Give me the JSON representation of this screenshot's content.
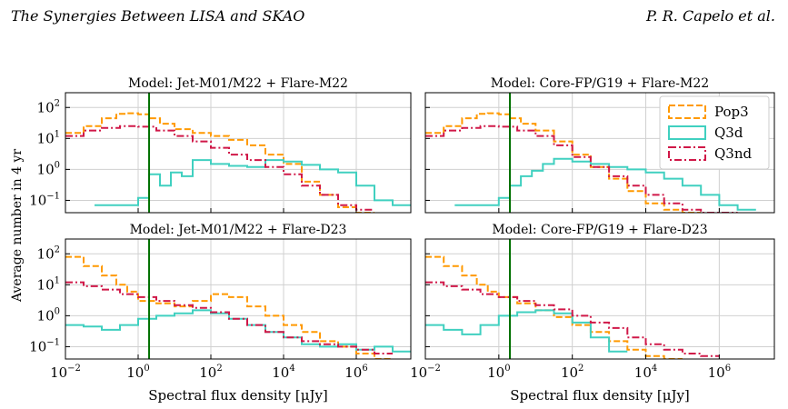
{
  "page": {
    "header_left": "The Synergies Between LISA and SKAO",
    "header_right": "P. R. Capelo et al."
  },
  "figure": {
    "ylabel": "Average number in 4 yr",
    "xlabel": "Spectral flux density [μJy]",
    "threshold_x": 2,
    "colors": {
      "Pop3": "#ff9900",
      "Q3d": "#40d0c0",
      "Q3nd": "#d01848",
      "threshold": "#007000"
    },
    "legend": [
      "Pop3",
      "Q3d",
      "Q3nd"
    ]
  },
  "chart_data": [
    {
      "type": "histogram",
      "title": "Model: Jet-M01/M22 + Flare-M22",
      "x_log_range": [
        -2,
        7.5
      ],
      "ylim": [
        0.04,
        300
      ],
      "x_ticks": [
        "10^-2",
        "10^0",
        "10^2",
        "10^4",
        "10^6"
      ],
      "y_ticks": [
        "10^-1",
        "10^0",
        "10^1",
        "10^2"
      ],
      "grid": true,
      "legend_position": "none",
      "series": [
        {
          "name": "Pop3",
          "x": [
            -2.0,
            -1.5,
            -1.0,
            -0.6,
            -0.3,
            0.0,
            0.3,
            0.6,
            1.0,
            1.5,
            2.0,
            2.5,
            3.0,
            3.5,
            4.0,
            4.5,
            5.0,
            5.5,
            6.0
          ],
          "y": [
            15,
            25,
            45,
            62,
            65,
            60,
            45,
            30,
            20,
            15,
            12,
            9,
            6,
            3,
            1.5,
            0.4,
            0.15,
            0.06,
            0.04
          ]
        },
        {
          "name": "Q3d",
          "x": [
            -1.2,
            -0.6,
            0.0,
            0.3,
            0.6,
            0.9,
            1.2,
            1.5,
            2.0,
            2.5,
            3.0,
            3.5,
            4.0,
            4.5,
            5.0,
            5.5,
            6.0,
            6.5,
            7.0
          ],
          "y": [
            0.07,
            0.07,
            0.12,
            0.7,
            0.3,
            0.8,
            0.6,
            2,
            1.5,
            1.3,
            1.2,
            2,
            1.8,
            1.4,
            1,
            0.8,
            0.3,
            0.1,
            0.07
          ]
        },
        {
          "name": "Q3nd",
          "x": [
            -2.0,
            -1.5,
            -1.0,
            -0.5,
            0.0,
            0.5,
            1.0,
            1.5,
            2.0,
            2.5,
            3.0,
            3.5,
            4.0,
            4.5,
            5.0,
            5.5,
            6.0
          ],
          "y": [
            12,
            18,
            22,
            25,
            24,
            18,
            12,
            8,
            5,
            3,
            2,
            1.2,
            0.7,
            0.3,
            0.15,
            0.07,
            0.05
          ]
        }
      ]
    },
    {
      "type": "histogram",
      "title": "Model: Core-FP/G19 + Flare-M22",
      "x_log_range": [
        -2,
        7.5
      ],
      "ylim": [
        0.04,
        300
      ],
      "x_ticks": [
        "10^-2",
        "10^0",
        "10^2",
        "10^4",
        "10^6"
      ],
      "y_ticks": [
        "10^-1",
        "10^0",
        "10^1",
        "10^2"
      ],
      "grid": true,
      "legend_position": "upper right",
      "series": [
        {
          "name": "Pop3",
          "x": [
            -2.0,
            -1.5,
            -1.0,
            -0.6,
            -0.3,
            0.0,
            0.3,
            0.6,
            1.0,
            1.5,
            2.0,
            2.5,
            3.0,
            3.5,
            4.0,
            4.5,
            5.0
          ],
          "y": [
            15,
            25,
            45,
            62,
            65,
            60,
            45,
            30,
            18,
            8,
            3,
            1.2,
            0.5,
            0.2,
            0.08,
            0.05,
            0.04
          ]
        },
        {
          "name": "Q3d",
          "x": [
            -1.2,
            -0.6,
            0.0,
            0.3,
            0.6,
            0.9,
            1.2,
            1.5,
            2.0,
            2.5,
            3.0,
            3.5,
            4.0,
            4.5,
            5.0,
            5.5,
            6.0,
            6.5
          ],
          "y": [
            0.07,
            0.07,
            0.12,
            0.3,
            0.6,
            0.9,
            1.5,
            2.2,
            1.8,
            1.5,
            1.2,
            1,
            0.8,
            0.5,
            0.3,
            0.15,
            0.07,
            0.05
          ]
        },
        {
          "name": "Q3nd",
          "x": [
            -2.0,
            -1.5,
            -1.0,
            -0.5,
            0.0,
            0.5,
            1.0,
            1.5,
            2.0,
            2.5,
            3.0,
            3.5,
            4.0,
            4.5,
            5.0,
            5.5,
            6.0
          ],
          "y": [
            12,
            18,
            22,
            25,
            24,
            18,
            12,
            6,
            2.5,
            1.2,
            0.6,
            0.3,
            0.15,
            0.08,
            0.05,
            0.04,
            0.04
          ]
        }
      ]
    },
    {
      "type": "histogram",
      "title": "Model: Jet-M01/M22 + Flare-D23",
      "x_log_range": [
        -2,
        7.5
      ],
      "ylim": [
        0.04,
        300
      ],
      "x_ticks": [
        "10^-2",
        "10^0",
        "10^2",
        "10^4",
        "10^6"
      ],
      "y_ticks": [
        "10^-1",
        "10^0",
        "10^1",
        "10^2"
      ],
      "grid": true,
      "legend_position": "none",
      "series": [
        {
          "name": "Pop3",
          "x": [
            -2.0,
            -1.5,
            -1.0,
            -0.6,
            -0.3,
            0.0,
            0.5,
            1.0,
            1.5,
            2.0,
            2.5,
            3.0,
            3.5,
            4.0,
            4.5,
            5.0,
            5.5,
            6.0,
            6.5
          ],
          "y": [
            80,
            40,
            20,
            10,
            6,
            3,
            2.5,
            2,
            3,
            5,
            4,
            2,
            1,
            0.5,
            0.3,
            0.15,
            0.1,
            0.06,
            0.04
          ]
        },
        {
          "name": "Q3d",
          "x": [
            -2.0,
            -1.5,
            -1.0,
            -0.5,
            0.0,
            0.5,
            1.0,
            1.5,
            2.0,
            2.5,
            3.0,
            3.5,
            4.0,
            4.5,
            5.0,
            5.5,
            6.0,
            6.5,
            7.0
          ],
          "y": [
            0.5,
            0.45,
            0.35,
            0.5,
            0.8,
            1,
            1.2,
            1.5,
            1.2,
            0.8,
            0.5,
            0.3,
            0.2,
            0.12,
            0.1,
            0.12,
            0.08,
            0.1,
            0.07
          ]
        },
        {
          "name": "Q3nd",
          "x": [
            -2.0,
            -1.5,
            -1.0,
            -0.5,
            0.0,
            0.5,
            1.0,
            1.5,
            2.0,
            2.5,
            3.0,
            3.5,
            4.0,
            4.5,
            5.0,
            5.5,
            6.0,
            6.5
          ],
          "y": [
            12,
            9,
            7,
            5,
            4,
            3,
            2.2,
            1.8,
            1.3,
            0.8,
            0.5,
            0.3,
            0.2,
            0.15,
            0.12,
            0.1,
            0.08,
            0.06
          ]
        }
      ]
    },
    {
      "type": "histogram",
      "title": "Model: Core-FP/G19 + Flare-D23",
      "x_log_range": [
        -2,
        7.5
      ],
      "ylim": [
        0.04,
        300
      ],
      "x_ticks": [
        "10^-2",
        "10^0",
        "10^2",
        "10^4",
        "10^6"
      ],
      "y_ticks": [
        "10^-1",
        "10^0",
        "10^1",
        "10^2"
      ],
      "grid": true,
      "legend_position": "none",
      "series": [
        {
          "name": "Pop3",
          "x": [
            -2.0,
            -1.5,
            -1.0,
            -0.6,
            -0.3,
            0.0,
            0.5,
            1.0,
            1.5,
            2.0,
            2.5,
            3.0,
            3.5,
            4.0,
            4.5
          ],
          "y": [
            80,
            40,
            20,
            10,
            6,
            4,
            2.5,
            1.5,
            0.9,
            0.5,
            0.3,
            0.15,
            0.08,
            0.05,
            0.04
          ]
        },
        {
          "name": "Q3d",
          "x": [
            -2.0,
            -1.5,
            -1.0,
            -0.5,
            0.0,
            0.5,
            1.0,
            1.5,
            2.0,
            2.5,
            3.0
          ],
          "y": [
            0.5,
            0.35,
            0.25,
            0.5,
            1,
            1.3,
            1.5,
            1.2,
            0.6,
            0.2,
            0.07
          ]
        },
        {
          "name": "Q3nd",
          "x": [
            -2.0,
            -1.5,
            -1.0,
            -0.5,
            0.0,
            0.5,
            1.0,
            1.5,
            2.0,
            2.5,
            3.0,
            3.5,
            4.0,
            4.5,
            5.0,
            5.5
          ],
          "y": [
            12,
            9,
            7,
            5,
            4,
            3,
            2.2,
            1.6,
            1,
            0.6,
            0.4,
            0.2,
            0.12,
            0.08,
            0.06,
            0.05
          ]
        }
      ]
    }
  ]
}
